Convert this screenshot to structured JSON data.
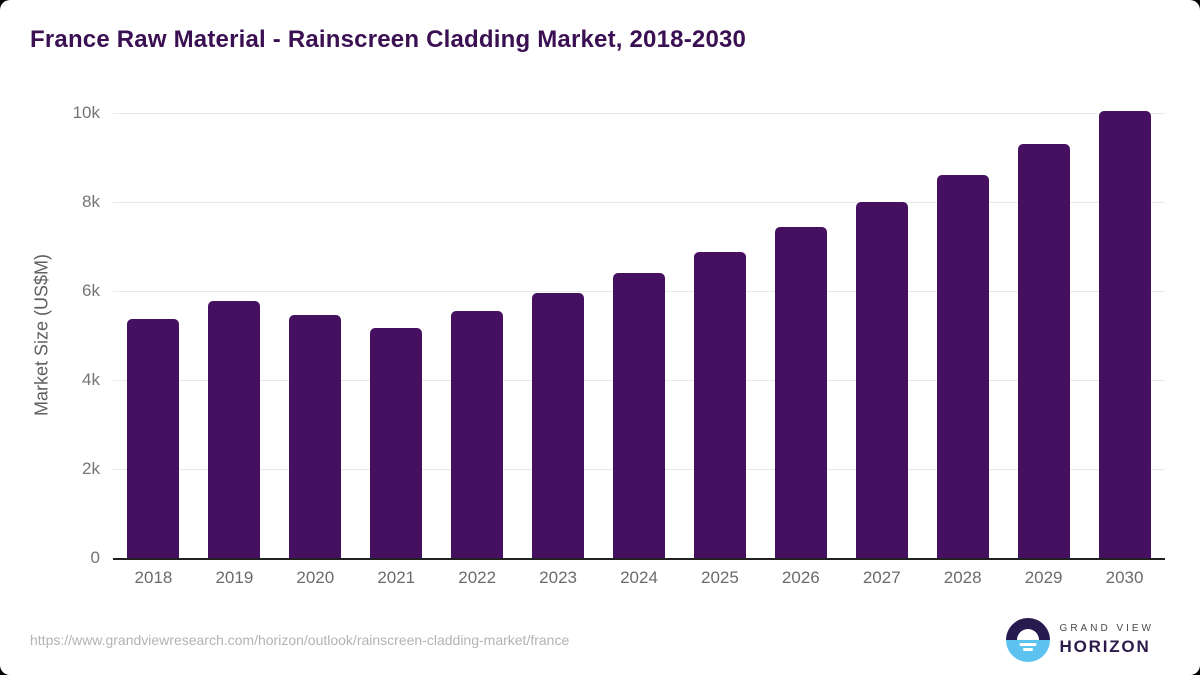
{
  "header": {
    "title": "France Raw Material - Rainscreen Cladding Market, 2018-2030"
  },
  "chart_data": {
    "type": "bar",
    "title": "France Raw Material - Rainscreen Cladding Market, 2018-2030",
    "categories": [
      "2018",
      "2019",
      "2020",
      "2021",
      "2022",
      "2023",
      "2024",
      "2025",
      "2026",
      "2027",
      "2028",
      "2029",
      "2030"
    ],
    "values": [
      5370,
      5780,
      5450,
      5160,
      5560,
      5960,
      6410,
      6880,
      7430,
      7990,
      8610,
      9300,
      10040
    ],
    "xlabel": "",
    "ylabel": "Market Size (US$M)",
    "ylim": [
      0,
      10000
    ],
    "yticks": [
      {
        "value": 0,
        "label": "0"
      },
      {
        "value": 2000,
        "label": "2k"
      },
      {
        "value": 4000,
        "label": "4k"
      },
      {
        "value": 6000,
        "label": "6k"
      },
      {
        "value": 8000,
        "label": "8k"
      },
      {
        "value": 10000,
        "label": "10k"
      }
    ],
    "grid": true,
    "legend": false,
    "bar_color": "#45105f"
  },
  "footer": {
    "source_url": "https://www.grandviewresearch.com/horizon/outlook/rainscreen-cladding-market/france",
    "logo": {
      "top_text": "GRAND VIEW",
      "bottom_text": "HORIZON"
    }
  },
  "colors": {
    "bar": "#45105f",
    "title": "#3b1053",
    "axis_line": "#212121",
    "gridline": "#e8e8e8",
    "tick_text": "#757575",
    "url_text": "#b3b3b3",
    "logo_navy": "#261a4e",
    "logo_blue": "#5cc3f0"
  }
}
